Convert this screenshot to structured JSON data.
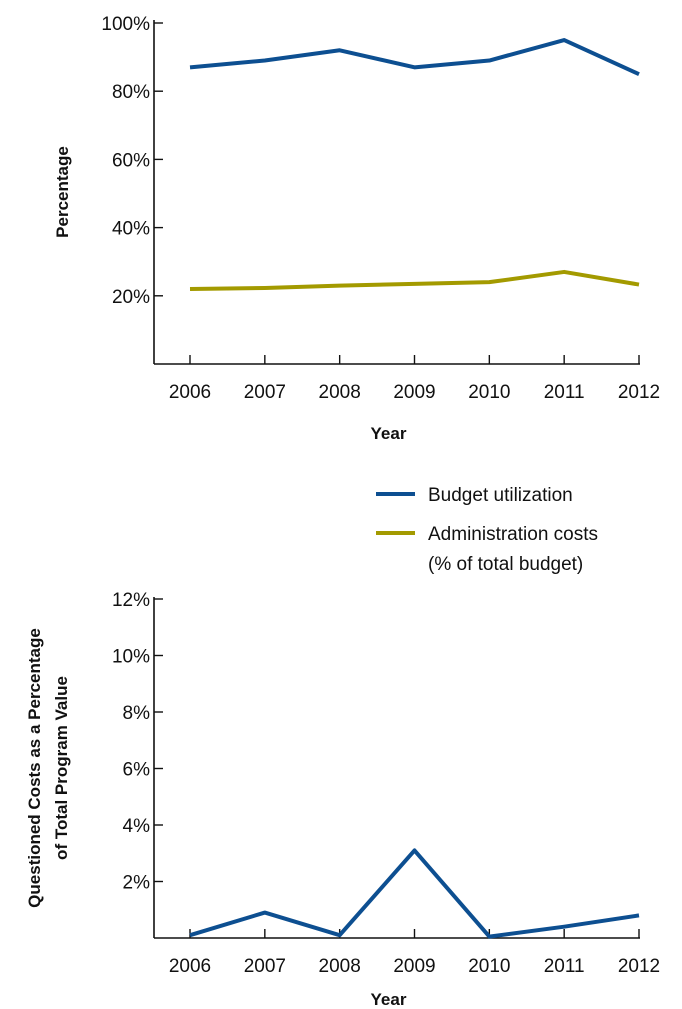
{
  "colors": {
    "budget_utilization": "#0d4f91",
    "administration_costs": "#a39a00",
    "axis": "#111111"
  },
  "legend": {
    "items": [
      {
        "label": "Budget utilization",
        "color": "#0d4f91"
      },
      {
        "label": "Administration costs",
        "label_line2": "(% of total budget)",
        "color": "#a39a00"
      }
    ]
  },
  "chart_data": [
    {
      "type": "line",
      "categories": [
        "2006",
        "2007",
        "2008",
        "2009",
        "2010",
        "2011",
        "2012"
      ],
      "series": [
        {
          "name": "Budget utilization",
          "color": "#0d4f91",
          "values": [
            87,
            89,
            92,
            87,
            89,
            95,
            85
          ]
        },
        {
          "name": "Administration costs (% of total budget)",
          "color": "#a39a00",
          "values": [
            22,
            22.3,
            23,
            23.5,
            24,
            27,
            23.3
          ]
        }
      ],
      "xlabel": "Year",
      "ylabel": "Percentage",
      "ylim": [
        0,
        100
      ],
      "yticks": [
        "20%",
        "40%",
        "60%",
        "80%",
        "100%"
      ],
      "ytick_values": [
        20,
        40,
        60,
        80,
        100
      ],
      "grid": false
    },
    {
      "type": "line",
      "categories": [
        "2006",
        "2007",
        "2008",
        "2009",
        "2010",
        "2011",
        "2012"
      ],
      "series": [
        {
          "color": "#0d4f91",
          "values": [
            0.1,
            0.9,
            0.1,
            3.1,
            0.05,
            0.4,
            0.8
          ]
        }
      ],
      "xlabel": "Year",
      "ylabel_line1": "Questioned Costs as a Percentage",
      "ylabel_line2": "of Total Program Value",
      "ylim": [
        0,
        12
      ],
      "yticks": [
        "2%",
        "4%",
        "6%",
        "8%",
        "10%",
        "12%"
      ],
      "ytick_values": [
        2,
        4,
        6,
        8,
        10,
        12
      ],
      "grid": false
    }
  ]
}
